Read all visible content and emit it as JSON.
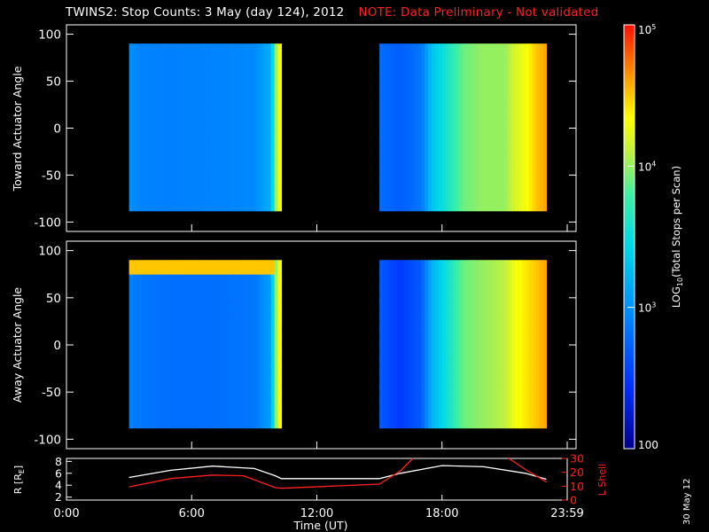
{
  "title": {
    "text": "TWINS2: Stop Counts:  3 May (day 124), 2012",
    "note": "NOTE: Data Preliminary - Not validated"
  },
  "credit": "30 May 12",
  "chart_data": [
    {
      "type": "heatmap",
      "ylabel": "Toward Actuator Angle",
      "ylim": [
        -110,
        110
      ],
      "yticks": [
        -100,
        -50,
        0,
        50,
        100
      ],
      "xlim": [
        0,
        24
      ],
      "xticks": [
        "0:00",
        "6:00",
        "12:00",
        "18:00",
        "23:59"
      ],
      "data_blocks": [
        {
          "x_start": 3.0,
          "x_end": 10.3,
          "y_min": -88,
          "y_max": 90
        },
        {
          "x_start": 15.0,
          "x_end": 23.0,
          "y_min": -88,
          "y_max": 90
        }
      ],
      "count_profile_vs_time": {
        "x": [
          3.0,
          3.5,
          5.0,
          7.0,
          9.0,
          9.8,
          10.1,
          10.3,
          15.0,
          16.0,
          17.0,
          17.5,
          19.0,
          20.0,
          21.0,
          21.5,
          22.0,
          22.5,
          23.0
        ],
        "log10_counts": [
          3.0,
          2.92,
          2.9,
          2.92,
          2.95,
          3.2,
          4.2,
          4.4,
          2.8,
          2.7,
          2.85,
          3.3,
          3.9,
          4.0,
          4.0,
          4.2,
          4.3,
          4.5,
          4.6
        ]
      }
    },
    {
      "type": "heatmap",
      "ylabel": "Away Actuator Angle",
      "ylim": [
        -110,
        110
      ],
      "yticks": [
        -100,
        -50,
        0,
        50,
        100
      ],
      "xlim": [
        0,
        24
      ],
      "xticks": [
        "0:00",
        "6:00",
        "12:00",
        "18:00",
        "23:59"
      ],
      "xlabel": "Time (UT)",
      "data_blocks": [
        {
          "x_start": 3.0,
          "x_end": 10.3,
          "y_min": -88,
          "y_max": 90
        },
        {
          "x_start": 15.0,
          "x_end": 23.0,
          "y_min": -88,
          "y_max": 90
        }
      ],
      "count_profile_vs_time": {
        "x": [
          3.0,
          3.5,
          5.0,
          7.0,
          9.0,
          9.8,
          10.1,
          10.3,
          15.0,
          16.0,
          17.0,
          17.5,
          19.0,
          20.0,
          21.0,
          21.5,
          22.0,
          22.5,
          23.0
        ],
        "log10_counts": [
          2.9,
          2.85,
          2.8,
          2.8,
          2.85,
          3.1,
          4.2,
          4.4,
          2.7,
          2.5,
          2.7,
          3.2,
          3.9,
          4.0,
          4.1,
          4.3,
          4.4,
          4.5,
          4.6
        ]
      },
      "hot_band": {
        "y_min": 68,
        "y_max": 88,
        "x_start": 3.0,
        "x_end": 10.0,
        "log10_counts": 4.5
      }
    },
    {
      "type": "line",
      "xlabel": "Time (UT)",
      "xticks": [
        "0:00",
        "6:00",
        "12:00",
        "18:00",
        "23:59"
      ],
      "xlim": [
        0,
        24
      ],
      "ylabel_left": "R [RE]",
      "ylim_left": [
        1.5,
        8.5
      ],
      "yticks_left": [
        2,
        4,
        6,
        8
      ],
      "ylabel_right": "L Shell",
      "ylim_right": [
        0,
        30
      ],
      "yticks_right": [
        0,
        10,
        20,
        30
      ],
      "series": [
        {
          "name": "R [RE]",
          "color": "#ffffff",
          "x": [
            3.0,
            5.0,
            7.0,
            9.0,
            10.0,
            10.3,
            15.0,
            16.0,
            18.0,
            20.0,
            22.0,
            23.0
          ],
          "values": [
            5.3,
            6.5,
            7.2,
            6.8,
            5.6,
            5.1,
            5.1,
            6.0,
            7.3,
            7.1,
            6.0,
            5.0
          ]
        },
        {
          "name": "L Shell",
          "color": "#ff2020",
          "axis": "right",
          "x": [
            3.0,
            5.0,
            7.0,
            8.5,
            10.0,
            10.3,
            15.0,
            16.0,
            16.6
          ],
          "values": [
            9.5,
            15.5,
            18.0,
            17.5,
            9.0,
            8.5,
            11.5,
            21.0,
            30.0
          ]
        },
        {
          "name": "L Shell",
          "color": "#ff2020",
          "axis": "right",
          "x": [
            21.2,
            22.0,
            23.0
          ],
          "values": [
            30.0,
            22.0,
            13.0
          ]
        }
      ]
    }
  ],
  "colorbar": {
    "label": "LOG10(Total Stops per Scan)",
    "label_main": "LOG",
    "label_sub": "10",
    "label_rest": "(Total Stops per Scan)",
    "ticks": [
      {
        "base": "10",
        "exp": "5",
        "value": 100000
      },
      {
        "base": "10",
        "exp": "4",
        "value": 10000
      },
      {
        "base": "10",
        "exp": "3",
        "value": 1000
      },
      {
        "base": "100",
        "exp": "",
        "value": 100
      }
    ],
    "range_log10": [
      2,
      5
    ]
  },
  "bottom_axis": {
    "r_label_main": "R [R",
    "r_label_sub": "E",
    "r_label_end": "]",
    "l_label": "L Shell"
  }
}
